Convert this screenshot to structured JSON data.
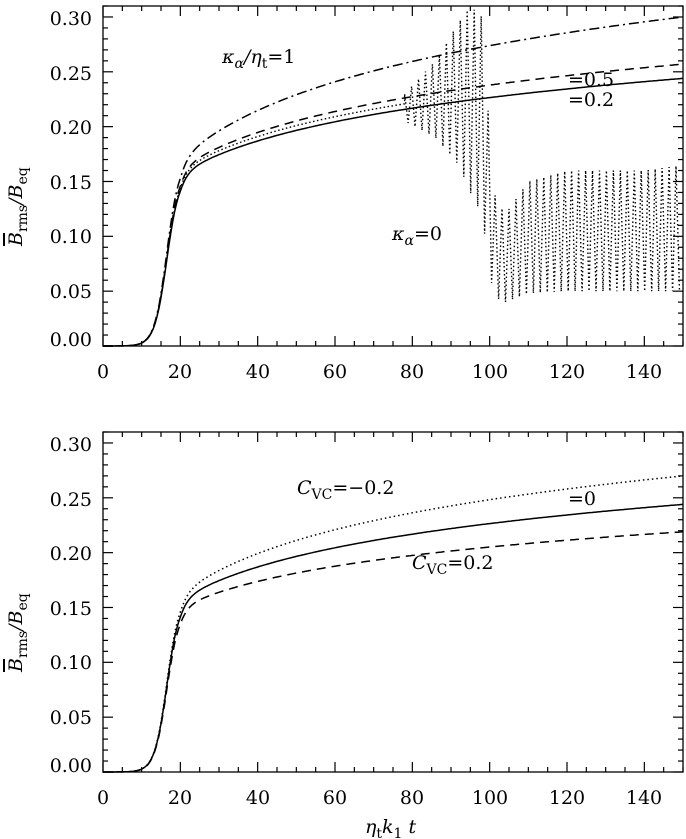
{
  "chart_data": [
    {
      "type": "line",
      "xlim": [
        0,
        150
      ],
      "ylim": [
        0,
        0.31
      ],
      "xticks": [
        "0",
        "20",
        "40",
        "60",
        "80",
        "100",
        "120",
        "140"
      ],
      "yticks": [
        "0.00",
        "0.05",
        "0.10",
        "0.15",
        "0.20",
        "0.25",
        "0.30"
      ],
      "xlabel": "",
      "ylabel": "B_rms/B_eq",
      "annotations": [
        "κα/ηt=1",
        "=0.5",
        "=0.2",
        "κα=0"
      ],
      "series": [
        {
          "name": "κα/ηt=1",
          "style": "dashdot",
          "final": 0.3,
          "at20": 0.17
        },
        {
          "name": "=0.5",
          "style": "dashed",
          "final": 0.257,
          "at20": 0.162
        },
        {
          "name": "=0.2",
          "style": "solid",
          "final": 0.244,
          "at20": 0.157
        },
        {
          "name": "κα=0",
          "style": "dotted",
          "oscillating": true,
          "x": [
            78,
            86,
            92,
            95,
            98,
            101,
            104,
            110,
            120,
            130,
            140,
            150
          ],
          "y_min": [
            0.205,
            0.19,
            0.165,
            0.14,
            0.12,
            0.045,
            0.04,
            0.048,
            0.05,
            0.05,
            0.05,
            0.05
          ],
          "y_max": [
            0.23,
            0.26,
            0.295,
            0.31,
            0.3,
            0.14,
            0.12,
            0.15,
            0.16,
            0.16,
            0.16,
            0.165
          ]
        }
      ]
    },
    {
      "type": "line",
      "xlim": [
        0,
        150
      ],
      "ylim": [
        0,
        0.31
      ],
      "xticks": [
        "0",
        "20",
        "40",
        "60",
        "80",
        "100",
        "120",
        "140"
      ],
      "yticks": [
        "0.00",
        "0.05",
        "0.10",
        "0.15",
        "0.20",
        "0.25",
        "0.30"
      ],
      "xlabel": "ηtk1 t",
      "ylabel": "B_rms/B_eq",
      "annotations": [
        "CVC=−0.2",
        "=0",
        "CVC=0.2"
      ],
      "series": [
        {
          "name": "CVC=−0.2",
          "style": "dotted",
          "final": 0.27,
          "at20": 0.162
        },
        {
          "name": "=0",
          "style": "solid",
          "final": 0.244,
          "at20": 0.157
        },
        {
          "name": "CVC=0.2",
          "style": "dashed",
          "final": 0.219,
          "at20": 0.15
        }
      ]
    }
  ]
}
